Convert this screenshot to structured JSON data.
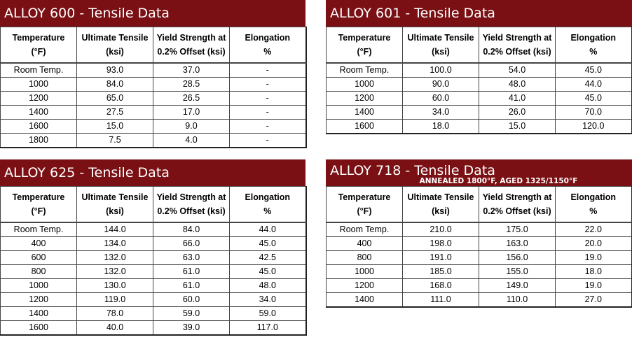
{
  "headers": {
    "temperature": [
      "Temperature",
      "(°F)"
    ],
    "ultimate": [
      "Ultimate Tensile",
      "(ksi)"
    ],
    "yield": [
      "Yield Strength at",
      "0.2% Offset (ksi)"
    ],
    "elongation": [
      "Elongation",
      "%"
    ]
  },
  "alloy600": {
    "title": "ALLOY 600 - Tensile Data",
    "rows": [
      [
        "Room Temp.",
        "93.0",
        "37.0",
        "-"
      ],
      [
        "1000",
        "84.0",
        "28.5",
        "-"
      ],
      [
        "1200",
        "65.0",
        "26.5",
        "-"
      ],
      [
        "1400",
        "27.5",
        "17.0",
        "-"
      ],
      [
        "1600",
        "15.0",
        "9.0",
        "-"
      ],
      [
        "1800",
        "7.5",
        "4.0",
        "-"
      ]
    ]
  },
  "alloy601": {
    "title": "ALLOY 601 - Tensile Data",
    "rows": [
      [
        "Room Temp.",
        "100.0",
        "54.0",
        "45.0"
      ],
      [
        "1000",
        "90.0",
        "48.0",
        "44.0"
      ],
      [
        "1200",
        "60.0",
        "41.0",
        "45.0"
      ],
      [
        "1400",
        "34.0",
        "26.0",
        "70.0"
      ],
      [
        "1600",
        "18.0",
        "15.0",
        "120.0"
      ]
    ]
  },
  "alloy625": {
    "title": "ALLOY 625 - Tensile Data",
    "rows": [
      [
        "Room Temp.",
        "144.0",
        "84.0",
        "44.0"
      ],
      [
        "400",
        "134.0",
        "66.0",
        "45.0"
      ],
      [
        "600",
        "132.0",
        "63.0",
        "42.5"
      ],
      [
        "800",
        "132.0",
        "61.0",
        "45.0"
      ],
      [
        "1000",
        "130.0",
        "61.0",
        "48.0"
      ],
      [
        "1200",
        "119.0",
        "60.0",
        "34.0"
      ],
      [
        "1400",
        "78.0",
        "59.0",
        "59.0"
      ],
      [
        "1600",
        "40.0",
        "39.0",
        "117.0"
      ]
    ]
  },
  "alloy718": {
    "title": "ALLOY 718 - Tensile Data",
    "subtitle": "ANNEALED 1800°F, AGED 1325/1150°F",
    "rows": [
      [
        "Room Temp.",
        "210.0",
        "175.0",
        "22.0"
      ],
      [
        "400",
        "198.0",
        "163.0",
        "20.0"
      ],
      [
        "800",
        "191.0",
        "156.0",
        "19.0"
      ],
      [
        "1000",
        "185.0",
        "155.0",
        "18.0"
      ],
      [
        "1200",
        "168.0",
        "149.0",
        "19.0"
      ],
      [
        "1400",
        "111.0",
        "110.0",
        "27.0"
      ]
    ]
  },
  "colors": {
    "title_bg": "#7a1014",
    "title_text": "#ffffff"
  }
}
